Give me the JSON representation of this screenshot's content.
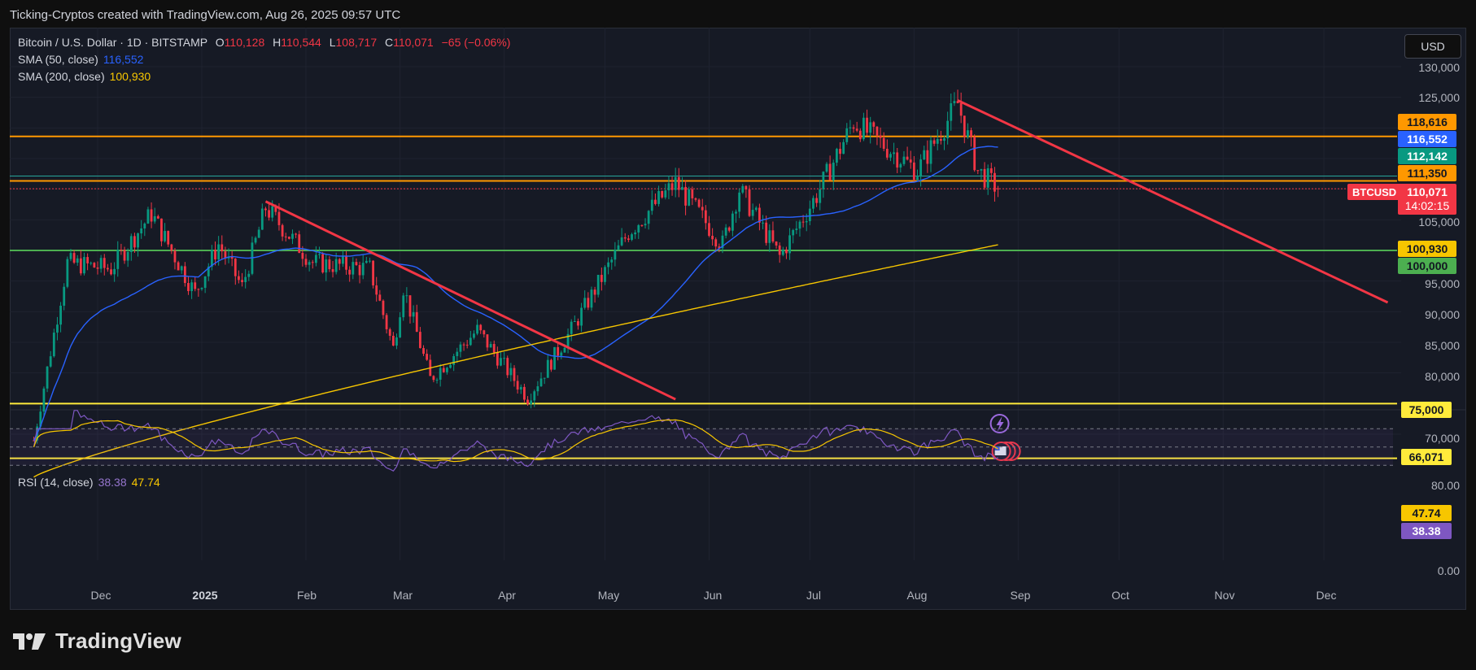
{
  "credit": "Ticking-Cryptos created with TradingView.com, Aug 26, 2025 09:57 UTC",
  "legend": {
    "title": "Bitcoin / U.S. Dollar · 1D · BITSTAMP",
    "o_key": "O",
    "o_val": "110,128",
    "h_key": "H",
    "h_val": "110,544",
    "l_key": "L",
    "l_val": "108,717",
    "c_key": "C",
    "c_val": "110,071",
    "change": "−65 (−0.06%)",
    "sma50_label": "SMA (50, close)",
    "sma50_val": "116,552",
    "sma200_label": "SMA (200, close)",
    "sma200_val": "100,930"
  },
  "rsi_legend": {
    "label": "RSI (14, close)",
    "val": "38.38",
    "ma_val": "47.74"
  },
  "currency_button": "USD",
  "symbol_tag": "BTCUSD",
  "price_ticks": [
    "130,000",
    "125,000",
    "105,000",
    "95,000",
    "90,000",
    "85,000",
    "80,000",
    "70,000"
  ],
  "rsi_ticks": [
    "80.00",
    "0.00"
  ],
  "tags": {
    "t118616": "118,616",
    "t116552": "116,552",
    "t112142": "112,142",
    "t111350": "111,350",
    "last_price": "110,071",
    "countdown": "14:02:15",
    "t100930": "100,930",
    "t100000": "100,000",
    "t75000": "75,000",
    "t66071": "66,071",
    "rsi_ma": "47.74",
    "rsi_val": "38.38"
  },
  "colors": {
    "bull": "#089981",
    "bear": "#f23645",
    "sma50": "#2962ff",
    "sma200": "#f7c600",
    "orange": "#ff9800",
    "green": "#4caf50",
    "yellow": "#ffeb3b",
    "teal": "#26a69a",
    "trend": "#f23645",
    "rsi": "#7e57c2"
  },
  "x_ticks": [
    "Dec",
    "2025",
    "Feb",
    "Mar",
    "Apr",
    "May",
    "Jun",
    "Jul",
    "Aug",
    "Sep",
    "Oct",
    "Nov",
    "Dec"
  ],
  "brand": "TradingView",
  "icons": [
    "lightning-event-icon",
    "us-flag-event-icon"
  ],
  "chart_data": {
    "type": "candlestick",
    "symbol": "Bitcoin / U.S. Dollar",
    "interval": "1D",
    "exchange": "BITSTAMP",
    "last_ohlc": {
      "open": 110128,
      "high": 110544,
      "low": 108717,
      "close": 110071
    },
    "approx_close_path": [
      {
        "date": "2024-11-12",
        "close": 69000
      },
      {
        "date": "2024-11-22",
        "close": 98000
      },
      {
        "date": "2024-12-05",
        "close": 97000
      },
      {
        "date": "2024-12-17",
        "close": 106000
      },
      {
        "date": "2024-12-30",
        "close": 93000
      },
      {
        "date": "2025-01-06",
        "close": 101000
      },
      {
        "date": "2025-01-13",
        "close": 94000
      },
      {
        "date": "2025-01-20",
        "close": 107000
      },
      {
        "date": "2025-02-03",
        "close": 98000
      },
      {
        "date": "2025-02-20",
        "close": 97000
      },
      {
        "date": "2025-02-27",
        "close": 84000
      },
      {
        "date": "2025-03-02",
        "close": 94000
      },
      {
        "date": "2025-03-10",
        "close": 79000
      },
      {
        "date": "2025-03-24",
        "close": 87000
      },
      {
        "date": "2025-04-08",
        "close": 76000
      },
      {
        "date": "2025-04-21",
        "close": 87000
      },
      {
        "date": "2025-05-08",
        "close": 103000
      },
      {
        "date": "2025-05-22",
        "close": 111000
      },
      {
        "date": "2025-06-05",
        "close": 101000
      },
      {
        "date": "2025-06-10",
        "close": 110000
      },
      {
        "date": "2025-06-22",
        "close": 99000
      },
      {
        "date": "2025-07-03",
        "close": 109000
      },
      {
        "date": "2025-07-14",
        "close": 121000
      },
      {
        "date": "2025-08-02",
        "close": 113000
      },
      {
        "date": "2025-08-14",
        "close": 124000
      },
      {
        "date": "2025-08-20",
        "close": 113000
      },
      {
        "date": "2025-08-26",
        "close": 110071
      }
    ],
    "sma50_last": 116552,
    "sma200_last": 100930,
    "horizontal_levels": [
      118616,
      111350,
      100000,
      75000,
      66071
    ],
    "trendlines": [
      {
        "from": {
          "date": "2025-01-20",
          "price": 108000
        },
        "to": {
          "date": "2025-05-22",
          "price": 75700
        }
      },
      {
        "from": {
          "date": "2025-08-14",
          "price": 124500
        },
        "to": {
          "date": "2025-12-20",
          "price": 91500
        }
      }
    ],
    "rsi": {
      "period": 14,
      "value": 38.38,
      "ma": 47.74,
      "bands": [
        70,
        50,
        30
      ]
    },
    "y_range": [
      63000,
      132000
    ],
    "x_range": [
      "2024-11-12",
      "2025-12-31"
    ],
    "grid": true
  }
}
